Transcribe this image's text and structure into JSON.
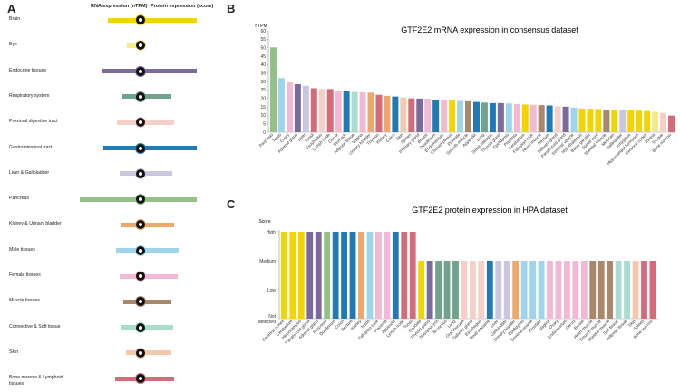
{
  "panels": {
    "a": {
      "letter": "A",
      "rna_header": "RNA expression (nTPM)",
      "protein_header": "Protein expression (score)",
      "organs": [
        {
          "label": "Brain",
          "color": "#f2d500"
        },
        {
          "label": "Eye",
          "color": "#f6e98a"
        },
        {
          "label": "Endocrine tissues",
          "color": "#7b6a9e"
        },
        {
          "label": "Respiratory system",
          "color": "#6fa38c"
        },
        {
          "label": "Proximal digestive tract",
          "color": "#f5cfc8"
        },
        {
          "label": "Gastrointestinal tract",
          "color": "#1f7bb6"
        },
        {
          "label": "Liver & Gallbladder",
          "color": "#c9c6e0"
        },
        {
          "label": "Pancreas",
          "color": "#95c088"
        },
        {
          "label": "Kidney & Urinary bladder",
          "color": "#f0a76a"
        },
        {
          "label": "Male tissues",
          "color": "#9fd5ec"
        },
        {
          "label": "Female tissues",
          "color": "#f2b9d4"
        },
        {
          "label": "Muscle tissues",
          "color": "#a9876a"
        },
        {
          "label": "Connective & Soft tissue",
          "color": "#a8dccf"
        },
        {
          "label": "Skin",
          "color": "#f4c8ad"
        },
        {
          "label": "Bone marrow & Lymphoid tissues",
          "color": "#d56a78"
        }
      ],
      "rna_extent": [
        0.42,
        0.18,
        0.5,
        0.23,
        0.3,
        0.48,
        0.27,
        0.78,
        0.25,
        0.31,
        0.27,
        0.22,
        0.25,
        0.19,
        0.32
      ],
      "protein_extent": [
        0.76,
        0.02,
        0.76,
        0.42,
        0.45,
        0.76,
        0.43,
        0.76,
        0.45,
        0.51,
        0.5,
        0.42,
        0.44,
        0.42,
        0.45
      ]
    },
    "b": {
      "letter": "B"
    },
    "c": {
      "letter": "C"
    }
  },
  "chart_data": [
    {
      "type": "bar",
      "title": "GTF2E2 mRNA expression in consensus dataset",
      "ylabel": "nTPM",
      "ylim": [
        0,
        60
      ],
      "yticks": [
        0,
        5,
        10,
        15,
        20,
        25,
        30,
        35,
        40,
        45,
        50,
        55,
        60
      ],
      "categories": [
        "Pancreas",
        "Testis",
        "Ovary",
        "Adrenal gland",
        "Liver",
        "Tonsil",
        "Esophagus",
        "Lymph node",
        "Cervix",
        "Stomach",
        "Adipose tissue",
        "Vagina",
        "Urinary bladder",
        "Thymus",
        "Kidney",
        "Colon",
        "Skin",
        "Spleen",
        "Pituitary gland",
        "Breast",
        "Duodenum",
        "Endometrium",
        "Choroid plexus",
        "Prostate",
        "Smooth muscle",
        "Appendix",
        "Lung",
        "Small intestine",
        "Thyroid gland",
        "Epididymis",
        "Placenta",
        "Cerebellum",
        "Fallopian tube",
        "Heart muscle",
        "Rectum",
        "Salivary gland",
        "Parathyroid gland",
        "Seminal vesicle",
        "Hypothalamus",
        "Basal ganglia",
        "Spinal cord",
        "Skeletal muscle",
        "Midbrain",
        "Gallbladder",
        "Amygdala",
        "Hippocampal formation",
        "Cerebral cortex",
        "Retina",
        "Tongue",
        "Bone marrow"
      ],
      "values": [
        50.2,
        32.0,
        29.5,
        28.4,
        27.4,
        26.0,
        25.6,
        25.5,
        24.4,
        24.2,
        23.8,
        23.6,
        23.4,
        22.1,
        21.5,
        21.1,
        20.5,
        20.0,
        19.9,
        19.8,
        19.3,
        19.0,
        18.8,
        18.5,
        18.3,
        17.9,
        17.5,
        17.2,
        17.2,
        17.0,
        16.7,
        16.4,
        16.2,
        16.0,
        15.8,
        15.3,
        15.1,
        14.5,
        14.0,
        13.9,
        13.7,
        13.4,
        13.2,
        13.1,
        12.9,
        12.7,
        12.5,
        12.0,
        11.4,
        9.8
      ],
      "colors": [
        "#95c088",
        "#9fd5ec",
        "#f2b9d4",
        "#7b6a9e",
        "#c9c6e0",
        "#d56a78",
        "#f5cfc8",
        "#d56a78",
        "#f2b9d4",
        "#1f7bb6",
        "#a8dccf",
        "#f2b9d4",
        "#f0a76a",
        "#d56a78",
        "#f0a76a",
        "#1f7bb6",
        "#f4c8ad",
        "#d56a78",
        "#7b6a9e",
        "#f2b9d4",
        "#1f7bb6",
        "#f2b9d4",
        "#f2d500",
        "#9fd5ec",
        "#a9876a",
        "#1f7bb6",
        "#6fa38c",
        "#1f7bb6",
        "#7b6a9e",
        "#9fd5ec",
        "#f2b9d4",
        "#f2d500",
        "#f2b9d4",
        "#a9876a",
        "#1f7bb6",
        "#f5cfc8",
        "#7b6a9e",
        "#9fd5ec",
        "#f2d500",
        "#f2d500",
        "#f2d500",
        "#a9876a",
        "#f2d500",
        "#c9c6e0",
        "#f2d500",
        "#f2d500",
        "#f2d500",
        "#f6e98a",
        "#f5cfc8",
        "#d56a78"
      ]
    },
    {
      "type": "bar",
      "title": "GTF2E2 protein expression in HPA dataset",
      "ylabel": "Score",
      "levels": [
        "Not detected",
        "Low",
        "Medium",
        "High"
      ],
      "categories": [
        "Cerebral cortex",
        "Cerebellum",
        "Hippocampus",
        "Parathyroid gland",
        "Adrenal gland",
        "Pancreas",
        "Duodenum",
        "Colon",
        "Rectum",
        "Kidney",
        "Testis",
        "Fallopian tube",
        "Placenta",
        "Appendix",
        "Lymph node",
        "Tonsil",
        "Caudate",
        "Thyroid gland",
        "Nasopharynx",
        "Bronchus",
        "Lung",
        "Oral mucosa",
        "Salivary gland",
        "Esophagus",
        "Small intestine",
        "Liver",
        "Gallbladder",
        "Urinary bladder",
        "Epididymis",
        "Seminal vesicle",
        "Prostate",
        "Vagina",
        "Ovary",
        "Endometrium",
        "Cervix",
        "Breast",
        "Heart muscle",
        "Smooth muscle",
        "Skeletal muscle",
        "Soft tissue",
        "Adipose tissue",
        "Skin",
        "Spleen",
        "Bone marrow"
      ],
      "values": [
        3,
        3,
        3,
        3,
        3,
        3,
        3,
        3,
        3,
        3,
        3,
        3,
        3,
        3,
        3,
        3,
        2,
        2,
        2,
        2,
        2,
        2,
        2,
        2,
        2,
        2,
        2,
        2,
        2,
        2,
        2,
        2,
        2,
        2,
        2,
        2,
        2,
        2,
        2,
        2,
        2,
        2,
        2,
        2
      ],
      "colors": [
        "#f2d500",
        "#f2d500",
        "#f2d500",
        "#7b6a9e",
        "#7b6a9e",
        "#95c088",
        "#1f7bb6",
        "#1f7bb6",
        "#1f7bb6",
        "#f0a76a",
        "#9fd5ec",
        "#f2b9d4",
        "#f2b9d4",
        "#1f7bb6",
        "#d56a78",
        "#d56a78",
        "#f2d500",
        "#7b6a9e",
        "#6fa38c",
        "#6fa38c",
        "#6fa38c",
        "#f5cfc8",
        "#f5cfc8",
        "#f5cfc8",
        "#1f7bb6",
        "#c9c6e0",
        "#c9c6e0",
        "#f0a76a",
        "#9fd5ec",
        "#9fd5ec",
        "#9fd5ec",
        "#f2b9d4",
        "#f2b9d4",
        "#f2b9d4",
        "#f2b9d4",
        "#f2b9d4",
        "#a9876a",
        "#a9876a",
        "#a9876a",
        "#a8dccf",
        "#a8dccf",
        "#f4c8ad",
        "#d56a78",
        "#d56a78"
      ]
    }
  ]
}
